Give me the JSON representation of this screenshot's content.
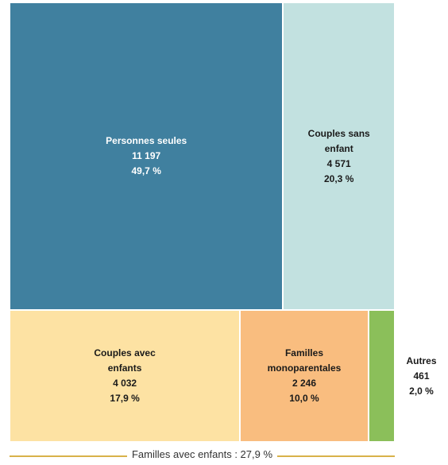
{
  "chart_data": {
    "type": "treemap",
    "categories": [
      "Personnes seules",
      "Couples sans enfant",
      "Couples avec enfants",
      "Familles monoparentales",
      "Autres"
    ],
    "values": [
      11197,
      4571,
      4032,
      2246,
      461
    ],
    "value_labels": [
      "11 197",
      "4 571",
      "4 032",
      "2 246",
      "461"
    ],
    "shares": [
      49.7,
      20.3,
      17.9,
      10.0,
      2.0
    ],
    "share_labels": [
      "49,7 %",
      "20,3 %",
      "17,9 %",
      "10,0 %",
      "2,0 %"
    ],
    "colors": [
      "#40809f",
      "#c2e1e0",
      "#fde2a3",
      "#f9bd7f",
      "#8bbf5a"
    ],
    "text_colors": [
      "#ffffff",
      "#1a1a1a",
      "#1a1a1a",
      "#1a1a1a",
      "#1a1a1a"
    ],
    "annotation": "Familles avec enfants : 27,9 %",
    "annotation_color": "#d8b24a"
  }
}
